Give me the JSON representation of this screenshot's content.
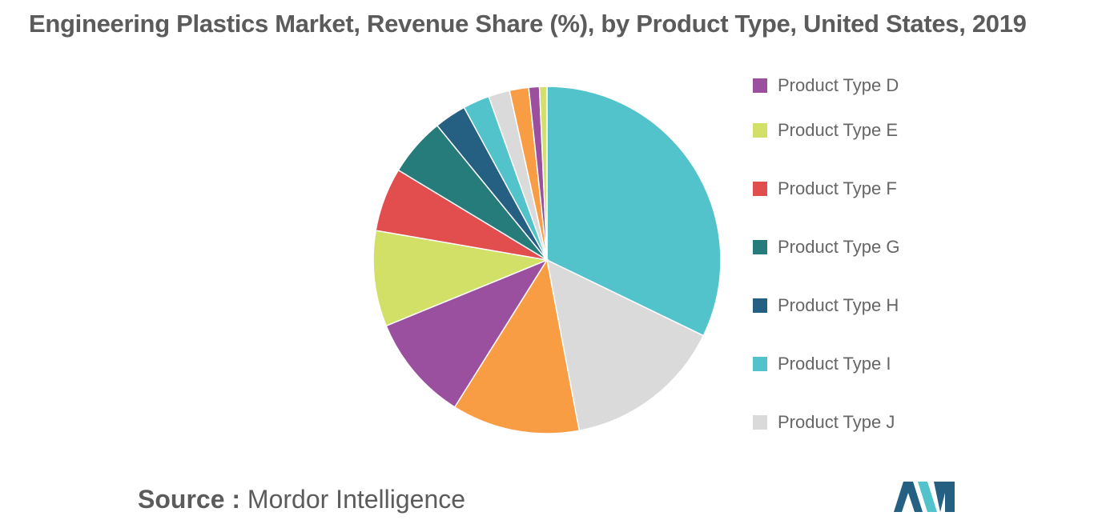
{
  "title": "Engineering Plastics Market, Revenue Share (%), by Product Type, United States, 2019",
  "source": {
    "label": "Source :",
    "value": "Mordor Intelligence"
  },
  "chart_data": {
    "type": "pie",
    "title": "Engineering Plastics Market, Revenue Share (%), by Product Type, United States, 2019",
    "start": "12 o'clock, clockwise",
    "slices": [
      {
        "value": 32.5,
        "color": "#52c3cb"
      },
      {
        "value": 15.0,
        "color": "#dadada"
      },
      {
        "value": 12.0,
        "color": "#f99d45"
      },
      {
        "value": 10.0,
        "color": "#9b4f9f"
      },
      {
        "value": 9.0,
        "color": "#d3e067"
      },
      {
        "value": 6.0,
        "color": "#e24d4e"
      },
      {
        "value": 5.5,
        "color": "#267c7b"
      },
      {
        "value": 3.0,
        "color": "#255f81"
      },
      {
        "value": 2.5,
        "color": "#52c3cb"
      },
      {
        "value": 2.0,
        "color": "#dadada"
      },
      {
        "value": 1.8,
        "color": "#f99d45"
      },
      {
        "value": 1.0,
        "color": "#9b4f9f"
      },
      {
        "value": 0.7,
        "color": "#d3e067"
      }
    ],
    "legend_position": "right",
    "legend": [
      {
        "label": "Product Type D",
        "color": "#9b4f9f"
      },
      {
        "label": "Product Type E",
        "color": "#d3e067"
      },
      {
        "label": "Product Type F",
        "color": "#e24d4e"
      },
      {
        "label": "Product Type G",
        "color": "#267c7b"
      },
      {
        "label": "Product Type H",
        "color": "#255f81"
      },
      {
        "label": "Product Type I",
        "color": "#52c3cb"
      },
      {
        "label": "Product Type J",
        "color": "#dadada"
      }
    ]
  },
  "logo": {
    "colors": [
      "#255f81",
      "#52c3cb"
    ]
  }
}
